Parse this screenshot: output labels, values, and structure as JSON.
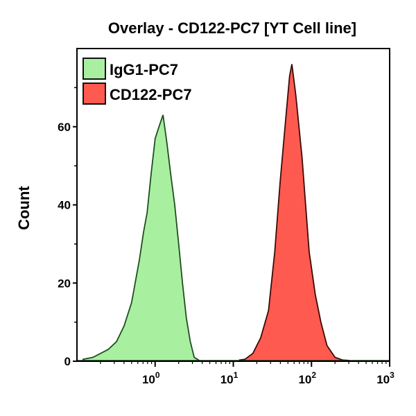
{
  "chart_data": {
    "type": "area",
    "title": "Overlay - CD122-PC7 [YT Cell line]",
    "xlabel": "",
    "ylabel": "Count",
    "xscale": "log",
    "xlim": [
      0.1,
      1000
    ],
    "ylim": [
      0,
      80
    ],
    "xticks": [
      {
        "value": 1,
        "base": "10",
        "exp": "0"
      },
      {
        "value": 10,
        "base": "10",
        "exp": "1"
      },
      {
        "value": 100,
        "base": "10",
        "exp": "2"
      },
      {
        "value": 1000,
        "base": "10",
        "exp": "3"
      }
    ],
    "yticks": [
      {
        "value": 0,
        "label": "0"
      },
      {
        "value": 20,
        "label": "20"
      },
      {
        "value": 40,
        "label": "40"
      },
      {
        "value": 60,
        "label": "60"
      }
    ],
    "grid": false,
    "legend_position": "top-left",
    "series": [
      {
        "name": "IgG1-PC7",
        "color": "#a8f0a0",
        "edge": "#1f4d1f",
        "x": [
          0.12,
          0.16,
          0.25,
          0.32,
          0.4,
          0.5,
          0.63,
          0.71,
          0.79,
          0.89,
          1.0,
          1.12,
          1.26,
          1.41,
          1.58,
          1.78,
          2.0,
          2.24,
          2.51,
          2.82,
          3.16,
          3.6
        ],
        "y": [
          0.5,
          1,
          3,
          5,
          9,
          15,
          26,
          33,
          38,
          48,
          57,
          60,
          63,
          56,
          48,
          40,
          30,
          20,
          11,
          5,
          1,
          0.3
        ]
      },
      {
        "name": "CD122-PC7",
        "color": "#ff5a50",
        "edge": "#3a0a08",
        "x": [
          12,
          14.1,
          17.8,
          22.4,
          28.2,
          33.9,
          39.8,
          46.8,
          52.5,
          56.2,
          63.1,
          75.9,
          93.3,
          112,
          132,
          158,
          200,
          251,
          300
        ],
        "y": [
          0.3,
          0.5,
          2,
          6,
          13,
          28,
          46,
          62,
          73,
          76,
          68,
          52,
          28,
          17,
          10,
          4,
          1,
          0.3,
          0.2
        ]
      }
    ]
  }
}
